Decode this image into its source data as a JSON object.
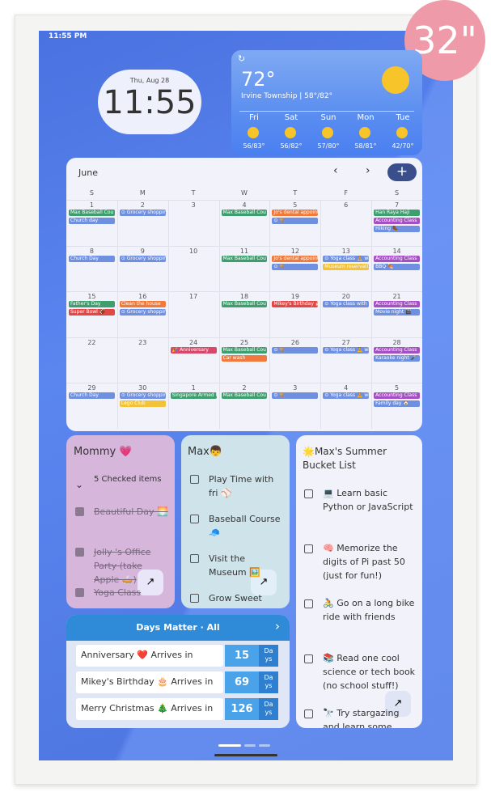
{
  "badge": "32\"",
  "status_time": "11:55 PM",
  "clock": {
    "date": "Thu, Aug 28",
    "time": "11:55"
  },
  "weather": {
    "temp": "72°",
    "location": "Irvine Township | 58°/82°",
    "days": [
      {
        "day": "Fri",
        "range": "56/83°"
      },
      {
        "day": "Sat",
        "range": "56/82°"
      },
      {
        "day": "Sun",
        "range": "57/80°"
      },
      {
        "day": "Mon",
        "range": "58/81°"
      },
      {
        "day": "Tue",
        "range": "42/70°"
      }
    ]
  },
  "calendar": {
    "month": "June",
    "weekdays": [
      "S",
      "M",
      "T",
      "W",
      "T",
      "F",
      "S"
    ],
    "cells": [
      {
        "date": "1",
        "events": [
          {
            "text": "Max Baseball Cou",
            "color": "#3e9e6e"
          },
          {
            "text": "Church day",
            "color": "#6f8fe0"
          }
        ]
      },
      {
        "date": "2",
        "events": [
          {
            "text": "⊙ Grocery shoppin",
            "color": "#6f8fe0"
          }
        ]
      },
      {
        "date": "3",
        "events": []
      },
      {
        "date": "4",
        "events": [
          {
            "text": "Max Baseball Cou",
            "color": "#3e9e6e"
          }
        ]
      },
      {
        "date": "5",
        "events": [
          {
            "text": "Jo's dental appoint",
            "color": "#ef7a3c"
          },
          {
            "text": "⊙ 🐒",
            "color": "#6f8fe0"
          }
        ]
      },
      {
        "date": "6",
        "events": []
      },
      {
        "date": "7",
        "events": [
          {
            "text": "Han Raya Haji",
            "color": "#3e9e6e"
          },
          {
            "text": "Accounting Class",
            "color": "#a64fc4"
          },
          {
            "text": "Hiking 🥾",
            "color": "#6f8fe0"
          }
        ]
      },
      {
        "date": "8",
        "events": [
          {
            "text": "Church Day",
            "color": "#6f8fe0"
          }
        ]
      },
      {
        "date": "9",
        "events": [
          {
            "text": "⊙ Grocery shoppin",
            "color": "#6f8fe0"
          }
        ]
      },
      {
        "date": "10",
        "events": []
      },
      {
        "date": "11",
        "events": [
          {
            "text": "Max Baseball Cou",
            "color": "#3e9e6e"
          }
        ]
      },
      {
        "date": "12",
        "events": [
          {
            "text": "Jo's dental appoint",
            "color": "#ef7a3c"
          },
          {
            "text": "⊙ 🐒",
            "color": "#6f8fe0"
          }
        ]
      },
      {
        "date": "13",
        "events": [
          {
            "text": "⊙ Yoga class 🧘 wi",
            "color": "#6f8fe0"
          },
          {
            "text": "Museum reservati",
            "color": "#f2c23a"
          }
        ]
      },
      {
        "date": "14",
        "events": [
          {
            "text": "Accounting Class",
            "color": "#a64fc4"
          },
          {
            "text": "BBQ 🍖",
            "color": "#6f8fe0"
          }
        ]
      },
      {
        "date": "15",
        "events": [
          {
            "text": "Father's Day",
            "color": "#3e9e6e"
          },
          {
            "text": "Super Bowl 🏈",
            "color": "#e04848"
          }
        ]
      },
      {
        "date": "16",
        "events": [
          {
            "text": "Clean the house",
            "color": "#ef7a3c"
          },
          {
            "text": "⊙ Grocery shoppin",
            "color": "#6f8fe0"
          }
        ]
      },
      {
        "date": "17",
        "events": []
      },
      {
        "date": "18",
        "events": [
          {
            "text": "Max Baseball Cou",
            "color": "#3e9e6e"
          }
        ]
      },
      {
        "date": "19",
        "events": [
          {
            "text": "Mikey's Birthday 🎂",
            "color": "#e04848"
          }
        ]
      },
      {
        "date": "20",
        "events": [
          {
            "text": "⊙ Yoga class with",
            "color": "#6f8fe0"
          }
        ]
      },
      {
        "date": "21",
        "events": [
          {
            "text": "Accounting Class",
            "color": "#a64fc4"
          },
          {
            "text": "Movie night 🎬",
            "color": "#6f8fe0"
          }
        ]
      },
      {
        "date": "22",
        "events": []
      },
      {
        "date": "23",
        "events": []
      },
      {
        "date": "24",
        "events": [
          {
            "text": "🎉 Anniversary",
            "color": "#d9486a"
          }
        ]
      },
      {
        "date": "25",
        "events": [
          {
            "text": "Max Baseball Cou",
            "color": "#3e9e6e"
          },
          {
            "text": "Car wash",
            "color": "#ef7a3c"
          }
        ]
      },
      {
        "date": "26",
        "events": [
          {
            "text": "⊙ 🐒",
            "color": "#6f8fe0"
          }
        ]
      },
      {
        "date": "27",
        "events": [
          {
            "text": "⊙ Yoga class 🧘 wi",
            "color": "#6f8fe0"
          }
        ]
      },
      {
        "date": "28",
        "events": [
          {
            "text": "Accounting Class",
            "color": "#a64fc4"
          },
          {
            "text": "Karaoke night 🎤",
            "color": "#6f8fe0"
          }
        ]
      },
      {
        "date": "29",
        "events": [
          {
            "text": "Church Day",
            "color": "#6f8fe0"
          }
        ]
      },
      {
        "date": "30",
        "events": [
          {
            "text": "⊙ Grocery shoppin",
            "color": "#6f8fe0"
          },
          {
            "text": "Lego Club",
            "color": "#f2c23a"
          }
        ]
      },
      {
        "date": "1",
        "events": [
          {
            "text": "Singapore Armed F",
            "color": "#3e9e6e"
          }
        ]
      },
      {
        "date": "2",
        "events": [
          {
            "text": "Max Baseball Cou",
            "color": "#3e9e6e"
          }
        ]
      },
      {
        "date": "3",
        "events": [
          {
            "text": "⊙ 🐒",
            "color": "#6f8fe0"
          }
        ]
      },
      {
        "date": "4",
        "events": [
          {
            "text": "⊙ Yoga class 🧘 wi",
            "color": "#6f8fe0"
          }
        ]
      },
      {
        "date": "5",
        "events": [
          {
            "text": "Accounting Class",
            "color": "#a64fc4"
          },
          {
            "text": "Family day 🏠",
            "color": "#6f8fe0"
          }
        ]
      }
    ]
  },
  "mommy": {
    "title": "Mommy 💗",
    "checked_summary": "5 Checked items",
    "items": [
      "Beautiful Day 🌅",
      "Jolly 's Office Party (take Apple 🥧)",
      "Yoga Class"
    ]
  },
  "max": {
    "title": "Max👦",
    "items": [
      "Play Time with fri ⚾",
      "Baseball Course 🧢",
      "Visit the Museum 🖼️",
      "Grow Sweet"
    ]
  },
  "bucket": {
    "title": "🌟Max's Summer Bucket List",
    "items": [
      "💻 Learn basic Python or JavaScript",
      "🧠 Memorize the digits of Pi past 50 (just for fun!)",
      "🚴 Go on a long bike ride with friends",
      "📚 Read one cool science or tech book (no school stuff!)",
      "🔭 Try stargazing and learn some"
    ]
  },
  "days_matter": {
    "title": "Days Matter · All",
    "unit": "Days",
    "rows": [
      {
        "label": "Anniversary ❤️ Arrives in",
        "days": 15
      },
      {
        "label": "Mikey's Birthday 🎂 Arrives in",
        "days": 69
      },
      {
        "label": "Merry Christmas 🎄 Arrives in",
        "days": 126
      }
    ]
  }
}
